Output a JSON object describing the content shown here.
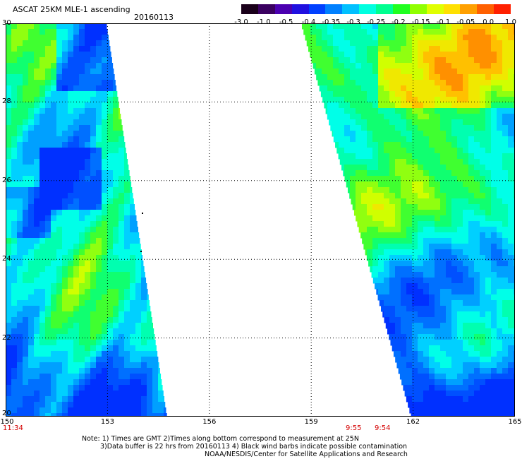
{
  "title": "ASCAT 25KM MLE-1 ascending",
  "date": "20160113",
  "colorbar": {
    "labels": [
      "-3.0",
      "-1.0",
      "-0.5",
      "-0.4",
      "-0.35",
      "-0.3",
      "-0.25",
      "-0.2",
      "-0.15",
      "-0.1",
      "-0.05",
      "0.0",
      "1.0"
    ],
    "colors": [
      "#1a001a",
      "#3a0060",
      "#4b00b0",
      "#2010e0",
      "#0040ff",
      "#0080ff",
      "#00c0ff",
      "#00ffe0",
      "#00ff90",
      "#20ff20",
      "#90ff00",
      "#e0ff00",
      "#ffe000",
      "#ffa000",
      "#ff6000",
      "#ff2000"
    ]
  },
  "map": {
    "lat_labels": [
      "30",
      "28",
      "26",
      "24",
      "22",
      "20"
    ],
    "lon_labels": [
      "150",
      "153",
      "156",
      "159",
      "162",
      "165"
    ],
    "lat_range": [
      20,
      30
    ],
    "lon_range": [
      150,
      165
    ]
  },
  "times": {
    "left": "11:34",
    "mid1": "9:55",
    "mid2": "9:54"
  },
  "notes": [
    "Note: 1) Times are GMT 2)Times along bottom correspond to measurement at 25N",
    "3)Data buffer is 22 hrs from 20160113 4) Black wind barbs indicate possible contamination",
    "NOAA/NESDIS/Center for Satellite Applications and Research"
  ]
}
